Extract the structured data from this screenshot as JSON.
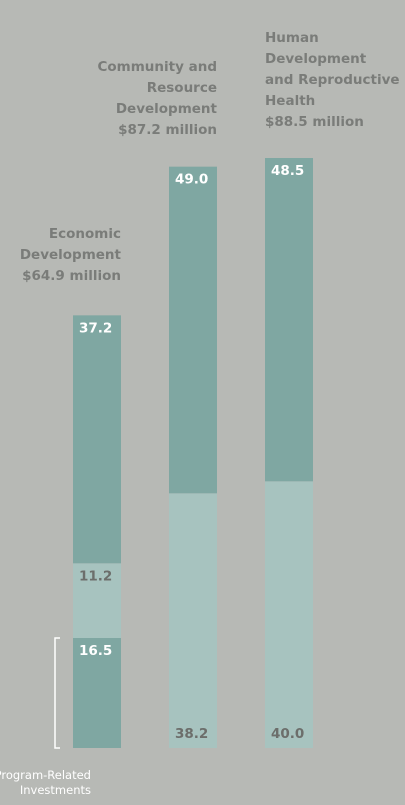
{
  "chart_data": {
    "type": "bar",
    "stacked": true,
    "unit": "$ million",
    "categories": [
      {
        "title_lines": [
          "Economic",
          "Development"
        ],
        "total_label": "$64.9 million",
        "total": 64.9
      },
      {
        "title_lines": [
          "Community and",
          "Resource",
          "Development"
        ],
        "total_label": "$87.2 million",
        "total": 87.2
      },
      {
        "title_lines": [
          "Human",
          "Development",
          "and Reproductive",
          "Health"
        ],
        "total_label": "$88.5 million",
        "total": 88.5
      }
    ],
    "segments": [
      [
        {
          "value": 16.5,
          "label": "16.5",
          "tone": "dark"
        },
        {
          "value": 11.2,
          "label": "11.2",
          "tone": "light"
        },
        {
          "value": 37.2,
          "label": "37.2",
          "tone": "dark"
        }
      ],
      [
        {
          "value": 38.2,
          "label": "38.2",
          "tone": "light"
        },
        {
          "value": 49.0,
          "label": "49.0",
          "tone": "dark"
        }
      ],
      [
        {
          "value": 40.0,
          "label": "40.0",
          "tone": "light"
        },
        {
          "value": 48.5,
          "label": "48.5",
          "tone": "dark"
        }
      ]
    ],
    "bracket_label_lines": [
      "Program-Related",
      "Investments"
    ],
    "colors": {
      "background": "#b7b9b5",
      "dark": "#7fa7a2",
      "light": "#a7c3bf",
      "label": "#7a7c79",
      "dark_text": "#ffffff",
      "light_text": "#6c6e6b"
    }
  }
}
